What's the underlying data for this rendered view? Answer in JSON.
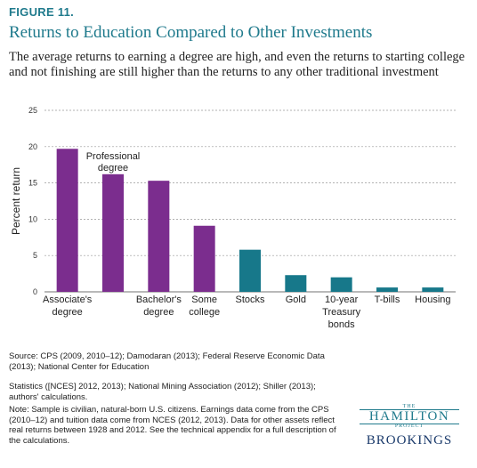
{
  "figure_label": "FIGURE 11.",
  "title": "Returns to Education Compared to Other Investments",
  "subtitle": "The average returns to earning a degree are high, and even the returns to starting college and not finishing are still higher than the returns to any other traditional investment",
  "colors": {
    "education": "#7b2d8e",
    "investment": "#17788a",
    "title": "#1f7a8c",
    "grid": "#999999"
  },
  "chart_data": {
    "type": "bar",
    "ylabel": "Percent return",
    "ylim": [
      0,
      25
    ],
    "yticks": [
      0,
      5,
      10,
      15,
      20,
      25
    ],
    "grid": true,
    "categories": [
      [
        "Associate's",
        "degree"
      ],
      [
        "Professional",
        "degree"
      ],
      [
        "Bachelor's",
        "degree"
      ],
      [
        "Some",
        "college"
      ],
      [
        "Stocks"
      ],
      [
        "Gold"
      ],
      [
        "10-year",
        "Treasury",
        "bonds"
      ],
      [
        "T-bills"
      ],
      [
        "Housing"
      ]
    ],
    "values": [
      19.7,
      16.2,
      15.3,
      9.1,
      5.8,
      2.3,
      2.0,
      0.6,
      0.6
    ],
    "group": [
      "education",
      "education",
      "education",
      "education",
      "investment",
      "investment",
      "investment",
      "investment",
      "investment"
    ],
    "label_above_bar": [
      false,
      true,
      false,
      false,
      false,
      false,
      false,
      false,
      false
    ]
  },
  "footnotes": {
    "source_line1": "Source: CPS (2009, 2010–12); Damodaran (2013); Federal Reserve Economic Data (2013); National Center for Education",
    "source_line2": "Statistics ([NCES] 2012, 2013); National Mining Association (2012); Shiller (2013); authors' calculations.",
    "note": "Note: Sample is civilian, natural-born U.S. citizens. Earnings data come from the CPS (2010–12) and tuition data come from NCES (2012, 2013). Data for other assets reflect real returns between 1928 and 2012. See the technical appendix for a full description of the calculations."
  },
  "logo": {
    "the": "THE",
    "hamilton": "HAMILTON",
    "project": "PROJECT",
    "brookings": "BROOKINGS"
  }
}
